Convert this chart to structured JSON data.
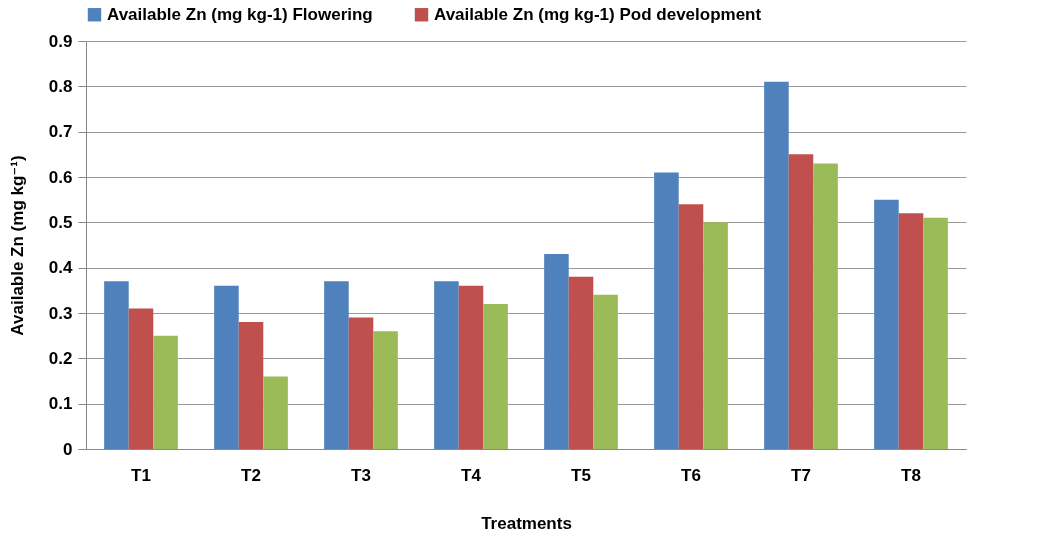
{
  "chart_data": {
    "type": "bar",
    "xlabel": "Treatments",
    "ylabel": "Available Zn (mg kg⁻¹)",
    "categories": [
      "T1",
      "T2",
      "T3",
      "T4",
      "T5",
      "T6",
      "T7",
      "T8"
    ],
    "series": [
      {
        "name": "Available Zn (mg kg-1) Flowering",
        "color": "#4f81bd",
        "values": [
          0.37,
          0.36,
          0.37,
          0.37,
          0.43,
          0.61,
          0.81,
          0.55
        ]
      },
      {
        "name": "Available Zn (mg kg-1) Pod development",
        "color": "#c0504d",
        "values": [
          0.31,
          0.28,
          0.29,
          0.36,
          0.38,
          0.54,
          0.65,
          0.52
        ]
      },
      {
        "color": "#9bbb59",
        "values": [
          0.25,
          0.16,
          0.26,
          0.32,
          0.34,
          0.5,
          0.63,
          0.51
        ]
      }
    ],
    "ylim": [
      0,
      0.9
    ],
    "yticks": [
      0,
      0.1,
      0.2,
      0.3,
      0.4,
      0.5,
      0.6,
      0.7,
      0.8,
      0.9
    ],
    "grid": "y",
    "legend": "top"
  }
}
